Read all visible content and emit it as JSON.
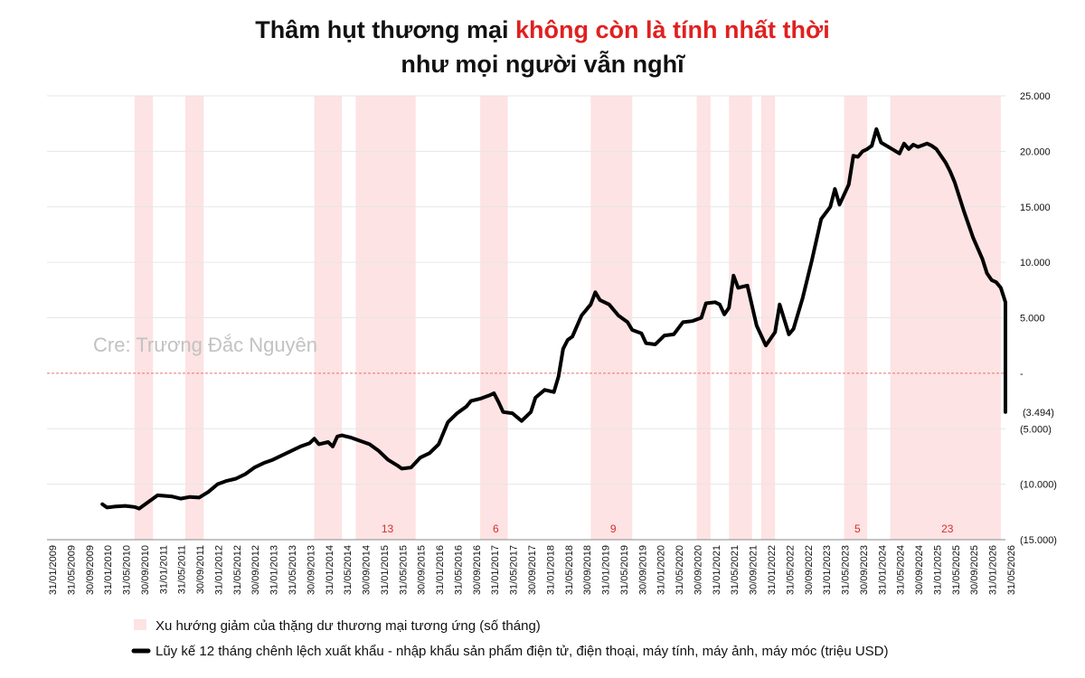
{
  "colors": {
    "band": "#fde3e3",
    "line": "#000000",
    "accent": "#e02020",
    "zero_line": "#e57373",
    "grid": "#e6e6e6"
  },
  "title": {
    "line1_part1": "Thâm hụt thương mại ",
    "line1_part2": "không còn là tính nhất thời",
    "line2": "như mọi người vẫn nghĩ"
  },
  "watermark": "Cre: Trương Đắc Nguyên",
  "legend": {
    "band_label": "Xu hướng giảm của thặng dư thương mại tương ứng (số tháng)",
    "line_label": "Lũy kế 12 tháng chênh lệch xuất khẩu - nhập khẩu sản phẩm điện tử, điện thoại, máy tính, máy ảnh, máy móc (triệu USD)"
  },
  "chart_data": {
    "type": "line",
    "title": "Thâm hụt thương mại không còn là tính nhất thời như mọi người vẫn nghĩ",
    "xlabel": "",
    "ylabel": "",
    "x_range": [
      "2009-01",
      "2026-05"
    ],
    "ylim": [
      -15000,
      25000
    ],
    "y_ticks": [
      {
        "value": 25000,
        "label": "25.000"
      },
      {
        "value": 20000,
        "label": "20.000"
      },
      {
        "value": 15000,
        "label": "15.000"
      },
      {
        "value": 10000,
        "label": "10.000"
      },
      {
        "value": 5000,
        "label": "5.000"
      },
      {
        "value": 0,
        "label": "-"
      },
      {
        "value": -5000,
        "label": "(5.000)"
      },
      {
        "value": -10000,
        "label": "(10.000)"
      },
      {
        "value": -15000,
        "label": "(15.000)"
      }
    ],
    "x_ticks": [
      "31/01/2009",
      "31/05/2009",
      "30/09/2009",
      "31/01/2010",
      "31/05/2010",
      "30/09/2010",
      "31/01/2011",
      "31/05/2011",
      "30/09/2011",
      "31/01/2012",
      "31/05/2012",
      "30/09/2012",
      "31/01/2013",
      "31/05/2013",
      "30/09/2013",
      "31/01/2014",
      "31/05/2014",
      "30/09/2014",
      "31/01/2015",
      "31/05/2015",
      "30/09/2015",
      "31/01/2016",
      "31/05/2016",
      "30/09/2016",
      "31/01/2017",
      "31/05/2017",
      "30/09/2017",
      "31/01/2018",
      "31/05/2018",
      "30/09/2018",
      "31/01/2019",
      "31/05/2019",
      "30/09/2019",
      "31/01/2020",
      "31/05/2020",
      "30/09/2020",
      "31/01/2021",
      "31/05/2021",
      "30/09/2021",
      "31/01/2022",
      "31/05/2022",
      "30/09/2022",
      "31/01/2023",
      "31/05/2023",
      "30/09/2023",
      "31/01/2024",
      "31/05/2024",
      "30/09/2024",
      "31/01/2025",
      "31/05/2025",
      "30/09/2025",
      "31/01/2026",
      "31/05/2026"
    ],
    "last_value_label": "(3.494)",
    "bands": [
      {
        "start": "2010-08",
        "end": "2010-12",
        "label": ""
      },
      {
        "start": "2011-07",
        "end": "2011-11",
        "label": ""
      },
      {
        "start": "2013-11",
        "end": "2014-05",
        "label": ""
      },
      {
        "start": "2014-08",
        "end": "2015-09",
        "label": "13"
      },
      {
        "start": "2016-11",
        "end": "2017-05",
        "label": "6"
      },
      {
        "start": "2018-11",
        "end": "2019-08",
        "label": "9"
      },
      {
        "start": "2020-10",
        "end": "2021-01",
        "label": ""
      },
      {
        "start": "2021-05",
        "end": "2021-10",
        "label": ""
      },
      {
        "start": "2021-12",
        "end": "2022-03",
        "label": ""
      },
      {
        "start": "2023-06",
        "end": "2023-11",
        "label": "5"
      },
      {
        "start": "2024-04",
        "end": "2026-04",
        "label": "23"
      }
    ],
    "series": [
      {
        "name": "",
        "points": [
          [
            "2010-01",
            -11800
          ],
          [
            "2010-02",
            -12100
          ],
          [
            "2010-04",
            -12000
          ],
          [
            "2010-06",
            -11950
          ],
          [
            "2010-08",
            -12050
          ],
          [
            "2010-09",
            -12200
          ],
          [
            "2010-11",
            -11600
          ],
          [
            "2011-01",
            -11000
          ],
          [
            "2011-04",
            -11100
          ],
          [
            "2011-06",
            -11300
          ],
          [
            "2011-08",
            -11150
          ],
          [
            "2011-10",
            -11200
          ],
          [
            "2011-12",
            -10700
          ],
          [
            "2012-02",
            -10000
          ],
          [
            "2012-04",
            -9700
          ],
          [
            "2012-06",
            -9500
          ],
          [
            "2012-08",
            -9100
          ],
          [
            "2012-10",
            -8500
          ],
          [
            "2012-12",
            -8100
          ],
          [
            "2013-02",
            -7800
          ],
          [
            "2013-04",
            -7400
          ],
          [
            "2013-06",
            -7000
          ],
          [
            "2013-08",
            -6600
          ],
          [
            "2013-10",
            -6300
          ],
          [
            "2013-11",
            -5900
          ],
          [
            "2013-12",
            -6400
          ],
          [
            "2014-02",
            -6200
          ],
          [
            "2014-03",
            -6600
          ],
          [
            "2014-04",
            -5700
          ],
          [
            "2014-05",
            -5600
          ],
          [
            "2014-07",
            -5800
          ],
          [
            "2014-09",
            -6100
          ],
          [
            "2014-11",
            -6400
          ],
          [
            "2015-01",
            -7000
          ],
          [
            "2015-03",
            -7800
          ],
          [
            "2015-05",
            -8300
          ],
          [
            "2015-06",
            -8600
          ],
          [
            "2015-08",
            -8500
          ],
          [
            "2015-10",
            -7600
          ],
          [
            "2015-12",
            -7200
          ],
          [
            "2016-02",
            -6400
          ],
          [
            "2016-04",
            -4400
          ],
          [
            "2016-06",
            -3600
          ],
          [
            "2016-08",
            -3000
          ],
          [
            "2016-09",
            -2500
          ],
          [
            "2016-11",
            -2300
          ],
          [
            "2017-01",
            -2000
          ],
          [
            "2017-02",
            -1800
          ],
          [
            "2017-03",
            -2600
          ],
          [
            "2017-04",
            -3500
          ],
          [
            "2017-06",
            -3600
          ],
          [
            "2017-08",
            -4300
          ],
          [
            "2017-10",
            -3500
          ],
          [
            "2017-11",
            -2200
          ],
          [
            "2018-01",
            -1500
          ],
          [
            "2018-03",
            -1700
          ],
          [
            "2018-04",
            -300
          ],
          [
            "2018-05",
            2200
          ],
          [
            "2018-06",
            3000
          ],
          [
            "2018-07",
            3300
          ],
          [
            "2018-09",
            5200
          ],
          [
            "2018-11",
            6200
          ],
          [
            "2018-12",
            7300
          ],
          [
            "2019-01",
            6600
          ],
          [
            "2019-03",
            6200
          ],
          [
            "2019-05",
            5200
          ],
          [
            "2019-07",
            4600
          ],
          [
            "2019-08",
            3900
          ],
          [
            "2019-10",
            3600
          ],
          [
            "2019-11",
            2700
          ],
          [
            "2020-01",
            2600
          ],
          [
            "2020-03",
            3400
          ],
          [
            "2020-05",
            3500
          ],
          [
            "2020-07",
            4600
          ],
          [
            "2020-09",
            4700
          ],
          [
            "2020-11",
            5000
          ],
          [
            "2020-12",
            6300
          ],
          [
            "2021-02",
            6400
          ],
          [
            "2021-03",
            6200
          ],
          [
            "2021-04",
            5300
          ],
          [
            "2021-05",
            5900
          ],
          [
            "2021-06",
            8800
          ],
          [
            "2021-07",
            7700
          ],
          [
            "2021-08",
            7800
          ],
          [
            "2021-09",
            7900
          ],
          [
            "2021-11",
            4300
          ],
          [
            "2022-01",
            2500
          ],
          [
            "2022-03",
            3700
          ],
          [
            "2022-04",
            6200
          ],
          [
            "2022-06",
            3500
          ],
          [
            "2022-07",
            4000
          ],
          [
            "2022-09",
            6800
          ],
          [
            "2022-11",
            10200
          ],
          [
            "2023-01",
            13900
          ],
          [
            "2023-03",
            15000
          ],
          [
            "2023-04",
            16600
          ],
          [
            "2023-05",
            15200
          ],
          [
            "2023-07",
            17000
          ],
          [
            "2023-08",
            19600
          ],
          [
            "2023-09",
            19500
          ],
          [
            "2023-10",
            20000
          ],
          [
            "2023-11",
            20200
          ],
          [
            "2023-12",
            20500
          ],
          [
            "2024-01",
            22000
          ],
          [
            "2024-02",
            20800
          ],
          [
            "2024-04",
            20300
          ],
          [
            "2024-06",
            19800
          ],
          [
            "2024-07",
            20700
          ],
          [
            "2024-08",
            20200
          ],
          [
            "2024-09",
            20600
          ],
          [
            "2024-10",
            20400
          ],
          [
            "2024-12",
            20700
          ],
          [
            "2025-01",
            20500
          ],
          [
            "2025-02",
            20200
          ],
          [
            "2025-04",
            19000
          ],
          [
            "2025-05",
            18200
          ],
          [
            "2025-06",
            17200
          ],
          [
            "2025-08",
            14600
          ],
          [
            "2025-10",
            12200
          ],
          [
            "2025-12",
            10300
          ],
          [
            "2026-01",
            9000
          ],
          [
            "2026-02",
            8400
          ],
          [
            "2026-03",
            8200
          ],
          [
            "2026-04",
            7700
          ],
          [
            "2026-05",
            6400
          ],
          [
            "2026-05b",
            3200
          ],
          [
            "2026-05c",
            3300
          ],
          [
            "2026-05d",
            1900
          ],
          [
            "2026-05e",
            -500
          ],
          [
            "2026-05f",
            -3494
          ]
        ]
      }
    ]
  }
}
